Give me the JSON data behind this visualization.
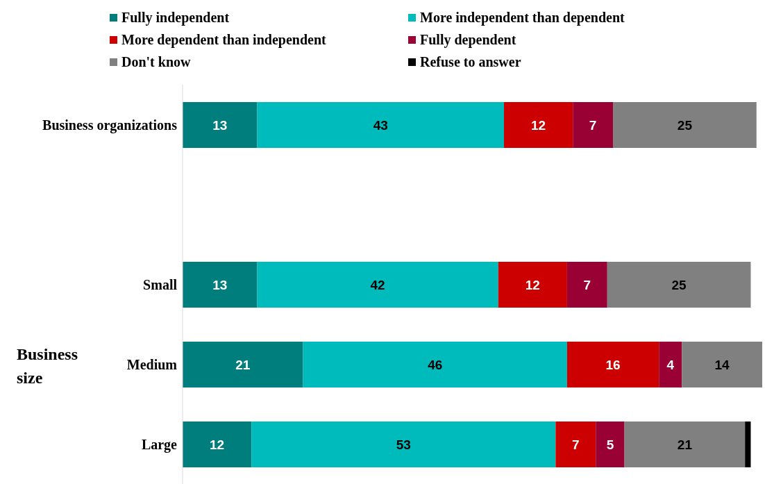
{
  "chart_data": {
    "type": "bar",
    "orientation": "horizontal",
    "stacked": true,
    "categories": [
      "Business organizations",
      null,
      "Small",
      "Medium",
      "Large"
    ],
    "ylabel": "Business size",
    "xlim": [
      0,
      101
    ],
    "tick_labels": "y",
    "legend": "top",
    "series": [
      {
        "name": "Fully independent",
        "color": "#007d7d",
        "values": [
          13,
          null,
          13,
          21,
          12
        ],
        "value_labels": [
          "13",
          null,
          "13",
          "21",
          "12"
        ]
      },
      {
        "name": "More independent than dependent",
        "color": "#00bbbb",
        "values": [
          43,
          null,
          42,
          46,
          53
        ],
        "value_labels": [
          "43",
          null,
          "42",
          "46",
          "53"
        ]
      },
      {
        "name": "More dependent than independent",
        "color": "#cc0000",
        "values": [
          12,
          null,
          12,
          16,
          7
        ],
        "value_labels": [
          "12",
          null,
          "12",
          "16",
          "7"
        ]
      },
      {
        "name": "Fully dependent",
        "color": "#990033",
        "values": [
          7,
          null,
          7,
          4,
          5
        ],
        "value_labels": [
          "7",
          null,
          "7",
          "4",
          "5"
        ]
      },
      {
        "name": "Don't know",
        "color": "#808080",
        "values": [
          25,
          null,
          25,
          14,
          21
        ],
        "value_labels": [
          "25",
          null,
          "25",
          "14",
          "21"
        ]
      },
      {
        "name": "Refuse to answer",
        "color": "#000000",
        "values": [
          null,
          null,
          null,
          null,
          1
        ],
        "value_labels": [
          null,
          null,
          null,
          null,
          null
        ]
      }
    ]
  }
}
